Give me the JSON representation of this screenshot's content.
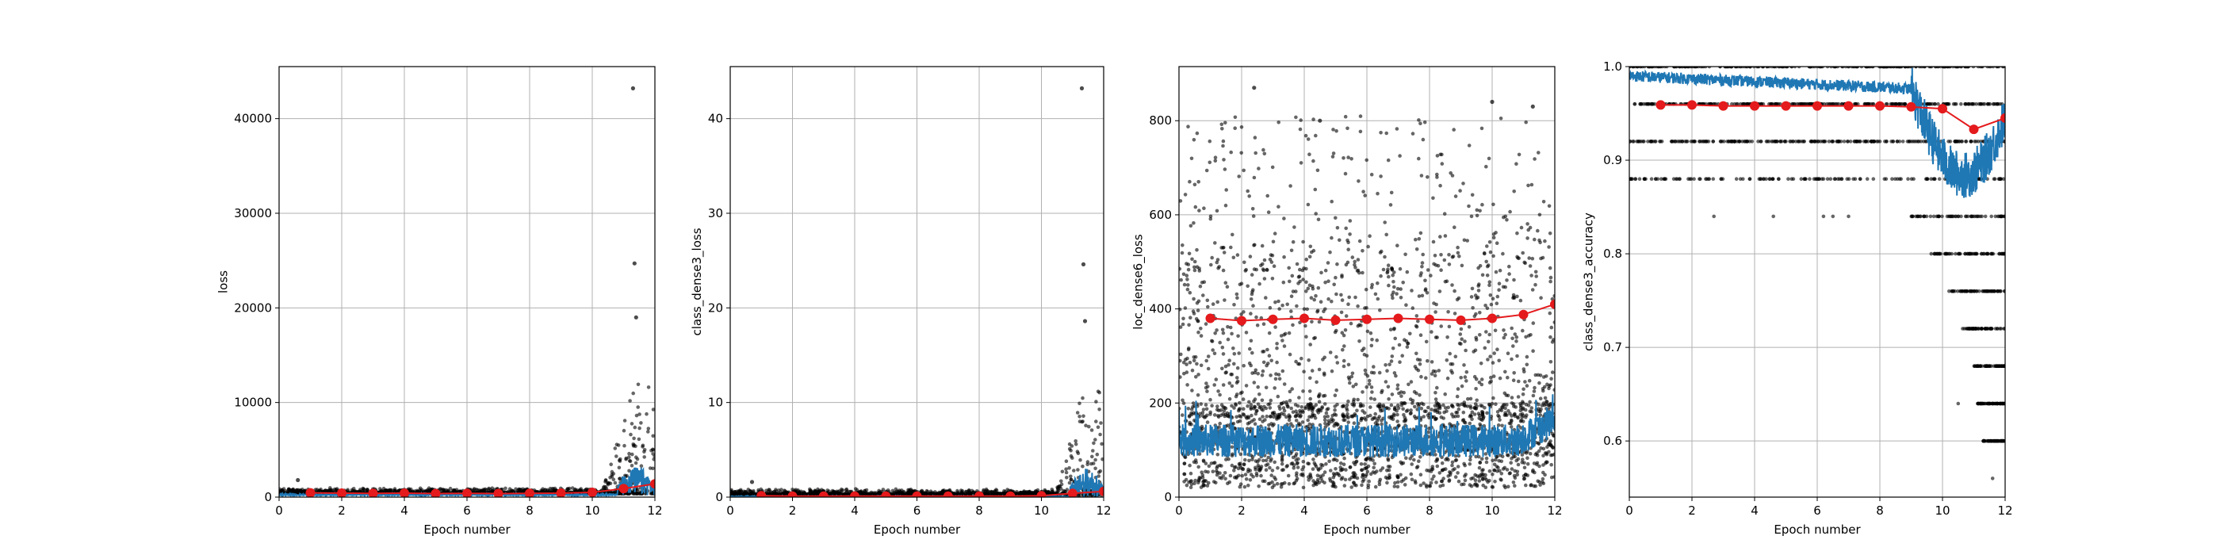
{
  "colors": {
    "scatter": "#000000",
    "line": "#1f77b4",
    "avg": "#e41a1c",
    "grid": "#b0b0b0"
  },
  "chart_data": [
    {
      "type": "scatter",
      "xlabel": "Epoch number",
      "ylabel": "loss",
      "xlim": [
        0,
        12
      ],
      "ylim": [
        0,
        45500
      ],
      "xticks": [
        0,
        2,
        4,
        6,
        8,
        10,
        12
      ],
      "yticks": [
        0,
        10000,
        20000,
        30000,
        40000
      ],
      "xtick_labels": [
        "0",
        "2",
        "4",
        "6",
        "8",
        "10",
        "12"
      ],
      "ytick_labels": [
        "0",
        "10000",
        "20000",
        "30000",
        "40000"
      ],
      "grid": true,
      "scatter_summary": {
        "base": 350,
        "spread": 650,
        "onset": 10.3,
        "peak": 12000
      },
      "outliers": [
        [
          11.3,
          43200
        ],
        [
          11.35,
          24700
        ],
        [
          11.4,
          19000
        ],
        [
          0.6,
          1800
        ]
      ],
      "line_summary": {
        "base": 250,
        "noise": 150,
        "onset": 10.8,
        "peak": 3000
      },
      "epoch_means": {
        "x": [
          1,
          2,
          3,
          4,
          5,
          6,
          7,
          8,
          9,
          10,
          11,
          12
        ],
        "y": [
          450,
          420,
          400,
          420,
          380,
          400,
          380,
          400,
          420,
          500,
          900,
          1400
        ]
      }
    },
    {
      "type": "scatter",
      "xlabel": "Epoch number",
      "ylabel": "class_dense3_loss",
      "xlim": [
        0,
        12
      ],
      "ylim": [
        0,
        45.5
      ],
      "xticks": [
        0,
        2,
        4,
        6,
        8,
        10,
        12
      ],
      "yticks": [
        0,
        10,
        20,
        30,
        40
      ],
      "xtick_labels": [
        "0",
        "2",
        "4",
        "6",
        "8",
        "10",
        "12"
      ],
      "ytick_labels": [
        "0",
        "10",
        "20",
        "30",
        "40"
      ],
      "grid": true,
      "scatter_summary": {
        "base": 0.2,
        "spread": 0.7,
        "onset": 10.4,
        "peak": 12
      },
      "outliers": [
        [
          11.3,
          43.2
        ],
        [
          11.35,
          24.6
        ],
        [
          11.4,
          18.6
        ],
        [
          0.7,
          1.6
        ]
      ],
      "line_summary": {
        "base": 0.05,
        "noise": 0.1,
        "onset": 10.9,
        "peak": 3
      },
      "epoch_means": {
        "x": [
          1,
          2,
          3,
          4,
          5,
          6,
          7,
          8,
          9,
          10,
          11,
          12
        ],
        "y": [
          0.15,
          0.1,
          0.1,
          0.1,
          0.1,
          0.1,
          0.1,
          0.1,
          0.1,
          0.15,
          0.4,
          0.6
        ]
      }
    },
    {
      "type": "scatter",
      "xlabel": "Epoch number",
      "ylabel": "loc_dense6_loss",
      "xlim": [
        0,
        12
      ],
      "ylim": [
        0,
        915
      ],
      "xticks": [
        0,
        2,
        4,
        6,
        8,
        10,
        12
      ],
      "yticks": [
        0,
        200,
        400,
        600,
        800
      ],
      "xtick_labels": [
        "0",
        "2",
        "4",
        "6",
        "8",
        "10",
        "12"
      ],
      "ytick_labels": [
        "0",
        "200",
        "400",
        "600",
        "800"
      ],
      "grid": true,
      "scatter_summary": {
        "base": 20,
        "spread": 620,
        "sparse_top": 880
      },
      "outliers": [
        [
          2.4,
          870
        ],
        [
          4.5,
          800
        ],
        [
          10.0,
          840
        ],
        [
          11.3,
          830
        ]
      ],
      "line_summary": {
        "mean": 120,
        "noise": 35,
        "end_mean": 165
      },
      "epoch_means": {
        "x": [
          1,
          2,
          3,
          4,
          5,
          6,
          7,
          8,
          9,
          10,
          11,
          12
        ],
        "y": [
          380,
          375,
          378,
          380,
          376,
          378,
          380,
          378,
          376,
          380,
          388,
          410
        ]
      }
    },
    {
      "type": "scatter",
      "xlabel": "Epoch number",
      "ylabel": "class_dense3_accuracy",
      "xlim": [
        0,
        12
      ],
      "ylim": [
        0.54,
        1.0
      ],
      "xticks": [
        0,
        2,
        4,
        6,
        8,
        10,
        12
      ],
      "yticks": [
        0.6,
        0.7,
        0.8,
        0.9,
        1.0
      ],
      "xtick_labels": [
        "0",
        "2",
        "4",
        "6",
        "8",
        "10",
        "12"
      ],
      "ytick_labels": [
        "0.6",
        "0.7",
        "0.8",
        "0.9",
        "1.0"
      ],
      "grid": true,
      "accuracy_levels": [
        1.0,
        0.96,
        0.92,
        0.88,
        0.84,
        0.8,
        0.76,
        0.72,
        0.68,
        0.64,
        0.6,
        0.56
      ],
      "line_summary": {
        "start": 0.99,
        "decline_onset": 9.0,
        "min": 0.87,
        "end": 0.94
      },
      "epoch_means": {
        "x": [
          1,
          2,
          3,
          4,
          5,
          6,
          7,
          8,
          9,
          10,
          11,
          12
        ],
        "y": [
          0.959,
          0.959,
          0.958,
          0.958,
          0.958,
          0.958,
          0.958,
          0.958,
          0.957,
          0.955,
          0.933,
          0.945
        ]
      }
    }
  ]
}
